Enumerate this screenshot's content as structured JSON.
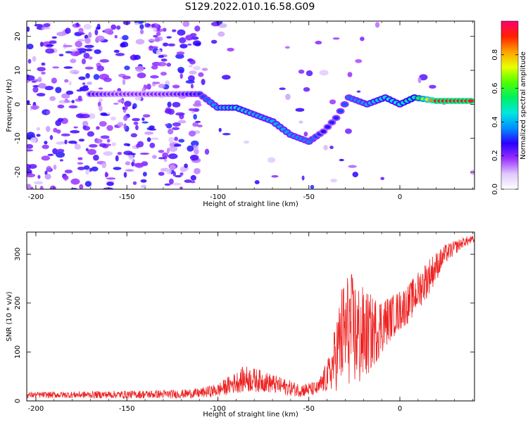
{
  "figure": {
    "title": "S129.2022.010.16.58.G09"
  },
  "chart_data": [
    {
      "type": "heatmap",
      "xlabel": "Height of straight line (km)",
      "ylabel": "Frequency (Hz)",
      "xlim": [
        -205,
        41
      ],
      "ylim": [
        -25,
        24.5
      ],
      "xticks": [
        -200,
        -150,
        -100,
        -50,
        0
      ],
      "yticks": [
        -20,
        -10,
        0,
        10,
        20
      ],
      "colorbar": {
        "label": "Normalized spectral amplitude",
        "range": [
          0,
          1
        ],
        "ticks": [
          0.0,
          0.2,
          0.4,
          0.6,
          0.8
        ],
        "ticklabels": [
          "0.0",
          "0.2",
          "0.4",
          "0.6",
          "0.8"
        ],
        "colors": [
          "#ffffff",
          "#e0c8ff",
          "#9a30ff",
          "#2a00ff",
          "#0090ff",
          "#00e8e0",
          "#00f060",
          "#50ff00",
          "#e8ff00",
          "#ffa000",
          "#ff2000",
          "#ff0070"
        ]
      },
      "ridge": [
        {
          "x": -170,
          "y": 3,
          "v": 0.25
        },
        {
          "x": -155,
          "y": 3,
          "v": 0.2
        },
        {
          "x": -140,
          "y": 3,
          "v": 0.2
        },
        {
          "x": -125,
          "y": 3,
          "v": 0.22
        },
        {
          "x": -110,
          "y": 3,
          "v": 0.3
        },
        {
          "x": -100,
          "y": -1,
          "v": 0.4
        },
        {
          "x": -90,
          "y": -1,
          "v": 0.45
        },
        {
          "x": -80,
          "y": -3,
          "v": 0.4
        },
        {
          "x": -70,
          "y": -5,
          "v": 0.4
        },
        {
          "x": -60,
          "y": -9,
          "v": 0.38
        },
        {
          "x": -50,
          "y": -11,
          "v": 0.36
        },
        {
          "x": -42,
          "y": -8,
          "v": 0.28
        },
        {
          "x": -35,
          "y": -4,
          "v": 0.3
        },
        {
          "x": -28,
          "y": 2,
          "v": 0.35
        },
        {
          "x": -18,
          "y": 0,
          "v": 0.4
        },
        {
          "x": -8,
          "y": 2,
          "v": 0.45
        },
        {
          "x": 0,
          "y": 0,
          "v": 0.45
        },
        {
          "x": 8,
          "y": 2,
          "v": 0.5
        },
        {
          "x": 20,
          "y": 1,
          "v": 0.92
        },
        {
          "x": 41,
          "y": 1,
          "v": 0.92
        }
      ]
    },
    {
      "type": "line",
      "xlabel": "Height of straight line (km)",
      "ylabel": "SNR (10 * v/v)",
      "xlim": [
        -205,
        41
      ],
      "ylim": [
        0,
        345
      ],
      "xticks": [
        -200,
        -150,
        -100,
        -50,
        0
      ],
      "yticks": [
        0,
        100,
        200,
        300
      ],
      "color": "#ee2222",
      "envelope": [
        {
          "x": -205,
          "y": 12,
          "amp": 6
        },
        {
          "x": -150,
          "y": 13,
          "amp": 8
        },
        {
          "x": -120,
          "y": 14,
          "amp": 9
        },
        {
          "x": -110,
          "y": 16,
          "amp": 10
        },
        {
          "x": -100,
          "y": 22,
          "amp": 14
        },
        {
          "x": -90,
          "y": 38,
          "amp": 22
        },
        {
          "x": -85,
          "y": 45,
          "amp": 28
        },
        {
          "x": -75,
          "y": 40,
          "amp": 22
        },
        {
          "x": -65,
          "y": 30,
          "amp": 18
        },
        {
          "x": -55,
          "y": 22,
          "amp": 14
        },
        {
          "x": -45,
          "y": 25,
          "amp": 15
        },
        {
          "x": -38,
          "y": 60,
          "amp": 40
        },
        {
          "x": -32,
          "y": 130,
          "amp": 110
        },
        {
          "x": -28,
          "y": 150,
          "amp": 120
        },
        {
          "x": -22,
          "y": 130,
          "amp": 110
        },
        {
          "x": -15,
          "y": 140,
          "amp": 75
        },
        {
          "x": -5,
          "y": 170,
          "amp": 45
        },
        {
          "x": 5,
          "y": 200,
          "amp": 40
        },
        {
          "x": 15,
          "y": 250,
          "amp": 40
        },
        {
          "x": 25,
          "y": 300,
          "amp": 20
        },
        {
          "x": 35,
          "y": 325,
          "amp": 10
        },
        {
          "x": 41,
          "y": 330,
          "amp": 8
        }
      ]
    }
  ]
}
